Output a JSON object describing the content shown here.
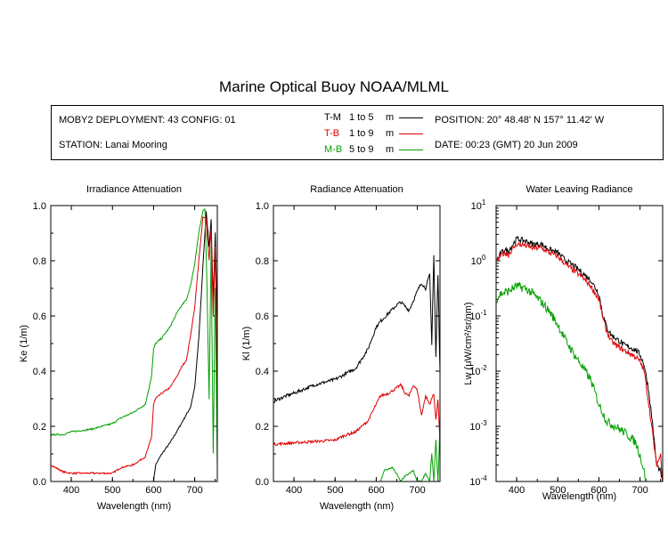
{
  "title": "Marine Optical Buoy NOAA/MLML",
  "info": {
    "deployment": "MOBY2 DEPLOYMENT: 43 CONFIG: 01",
    "station": "STATION: Lanai Mooring",
    "position": "POSITION: 20° 48.48' N   157° 11.42' W",
    "date": "DATE: 00:23 (GMT) 20 Jun 2009"
  },
  "legend": [
    {
      "code": "T-M",
      "range": "1 to 5",
      "unit": "m",
      "color": "#000000"
    },
    {
      "code": "T-B",
      "range": "1 to 9",
      "unit": "m",
      "color": "#e00000"
    },
    {
      "code": "M-B",
      "range": "5 to 9",
      "unit": "m",
      "color": "#00a000"
    }
  ],
  "chart_data": [
    {
      "type": "line",
      "title": "Irradiance Attenuation",
      "xlabel": "Wavelength (nm)",
      "ylabel": "Ke  (1/m)",
      "xlim": [
        350,
        755
      ],
      "ylim": [
        0,
        1
      ],
      "xticks": [
        "400",
        "500",
        "600",
        "700"
      ],
      "yticks": [
        "0.0",
        "0.2",
        "0.4",
        "0.6",
        "0.8",
        "1.0"
      ],
      "series": [
        {
          "name": "T-M",
          "color": "#000000",
          "noise": 0.003,
          "x": [
            600,
            605,
            620,
            640,
            660,
            675,
            690,
            700,
            710,
            720,
            728,
            735,
            740,
            745,
            750,
            755
          ],
          "y": [
            0.0,
            0.06,
            0.1,
            0.14,
            0.19,
            0.23,
            0.27,
            0.34,
            0.52,
            0.78,
            0.98,
            0.85,
            0.95,
            0.65,
            0.9,
            0.55
          ]
        },
        {
          "name": "T-B",
          "color": "#e00000",
          "noise": 0.003,
          "x": [
            350,
            380,
            400,
            450,
            500,
            520,
            550,
            580,
            595,
            600,
            605,
            620,
            640,
            660,
            670,
            680,
            690,
            700,
            710,
            720,
            728,
            735,
            740,
            745,
            750,
            755
          ],
          "y": [
            0.06,
            0.035,
            0.03,
            0.03,
            0.03,
            0.05,
            0.06,
            0.09,
            0.16,
            0.28,
            0.3,
            0.32,
            0.34,
            0.39,
            0.42,
            0.44,
            0.53,
            0.63,
            0.8,
            0.96,
            0.95,
            0.8,
            0.92,
            0.6,
            0.85,
            0.3
          ]
        },
        {
          "name": "M-B",
          "color": "#00a000",
          "noise": 0.003,
          "x": [
            350,
            380,
            400,
            450,
            500,
            520,
            550,
            580,
            595,
            600,
            605,
            620,
            640,
            660,
            670,
            680,
            690,
            700,
            710,
            720,
            725,
            730,
            735,
            740,
            745,
            750,
            755
          ],
          "y": [
            0.17,
            0.17,
            0.18,
            0.19,
            0.21,
            0.23,
            0.25,
            0.28,
            0.38,
            0.48,
            0.5,
            0.52,
            0.56,
            0.62,
            0.64,
            0.66,
            0.71,
            0.79,
            0.9,
            0.98,
            0.99,
            0.7,
            0.3,
            0.85,
            0.1,
            0.7,
            0.05
          ]
        }
      ]
    },
    {
      "type": "line",
      "title": "Radiance Attenuation",
      "xlabel": "Wavelength (nm)",
      "ylabel": "Kl  (1/m)",
      "xlim": [
        350,
        755
      ],
      "ylim": [
        0,
        1
      ],
      "xticks": [
        "400",
        "500",
        "600",
        "700"
      ],
      "yticks": [
        "0.0",
        "0.2",
        "0.4",
        "0.6",
        "0.8",
        "1.0"
      ],
      "series": [
        {
          "name": "T-M",
          "color": "#000000",
          "noise": 0.006,
          "x": [
            350,
            380,
            400,
            450,
            500,
            550,
            580,
            600,
            610,
            630,
            650,
            660,
            680,
            700,
            710,
            720,
            730,
            735,
            740,
            745,
            750,
            755
          ],
          "y": [
            0.29,
            0.31,
            0.32,
            0.35,
            0.37,
            0.41,
            0.48,
            0.56,
            0.58,
            0.61,
            0.64,
            0.65,
            0.62,
            0.69,
            0.72,
            0.7,
            0.75,
            0.5,
            0.82,
            0.45,
            0.75,
            0.4
          ]
        },
        {
          "name": "T-B",
          "color": "#e00000",
          "noise": 0.005,
          "x": [
            350,
            400,
            450,
            500,
            520,
            550,
            580,
            600,
            610,
            630,
            650,
            660,
            670,
            680,
            690,
            700,
            710,
            720,
            730,
            740,
            745,
            750,
            755
          ],
          "y": [
            0.135,
            0.14,
            0.145,
            0.15,
            0.165,
            0.18,
            0.22,
            0.28,
            0.31,
            0.32,
            0.34,
            0.35,
            0.32,
            0.31,
            0.35,
            0.33,
            0.24,
            0.31,
            0.28,
            0.32,
            0.22,
            0.3,
            0.15
          ]
        },
        {
          "name": "M-B",
          "color": "#00a000",
          "noise": 0.003,
          "x": [
            610,
            620,
            640,
            660,
            670,
            690,
            700,
            710,
            720,
            730,
            735,
            740,
            745,
            750,
            755
          ],
          "y": [
            0.0,
            0.04,
            0.05,
            0.0,
            0.02,
            0.04,
            0.0,
            0.0,
            0.03,
            0.0,
            0.1,
            0.0,
            0.15,
            0.0,
            0.2
          ]
        }
      ]
    },
    {
      "type": "line",
      "title": "Water Leaving Radiance",
      "xlabel": "Wavelength (nm)",
      "ylabel": "Lw  (μW/cm²/sr/nm)",
      "yscale": "log",
      "xlim": [
        350,
        755
      ],
      "ylim": [
        0.0001,
        10
      ],
      "xticks": [
        "400",
        "500",
        "600",
        "700"
      ],
      "yticks": [
        {
          "base": "10",
          "exp": "-4"
        },
        {
          "base": "10",
          "exp": "-3"
        },
        {
          "base": "10",
          "exp": "-2"
        },
        {
          "base": "10",
          "exp": "-1"
        },
        {
          "base": "10",
          "exp": "0"
        },
        {
          "base": "10",
          "exp": "1"
        }
      ],
      "series": [
        {
          "name": "T-M",
          "color": "#000000",
          "noise": 0.05,
          "x": [
            352,
            360,
            370,
            380,
            400,
            420,
            440,
            460,
            480,
            500,
            520,
            540,
            560,
            580,
            600,
            610,
            620,
            630,
            640,
            650,
            660,
            670,
            680,
            690,
            700,
            710,
            720,
            730,
            740,
            750,
            755
          ],
          "y": [
            1.0,
            1.3,
            1.6,
            1.5,
            2.5,
            2.3,
            2.0,
            2.0,
            1.6,
            1.4,
            1.0,
            0.8,
            0.6,
            0.45,
            0.25,
            0.1,
            0.06,
            0.045,
            0.04,
            0.035,
            0.03,
            0.028,
            0.026,
            0.024,
            0.02,
            0.013,
            0.005,
            0.0012,
            0.0002,
            0.00015,
            0.0001
          ]
        },
        {
          "name": "T-B",
          "color": "#e00000",
          "noise": 0.05,
          "x": [
            352,
            360,
            370,
            380,
            400,
            420,
            440,
            460,
            480,
            500,
            520,
            540,
            560,
            580,
            600,
            610,
            620,
            630,
            640,
            650,
            660,
            670,
            680,
            690,
            700,
            710,
            720,
            730,
            740,
            750,
            755
          ],
          "y": [
            1.0,
            1.2,
            1.4,
            1.3,
            2.0,
            1.9,
            1.7,
            1.7,
            1.4,
            1.2,
            0.85,
            0.65,
            0.5,
            0.35,
            0.2,
            0.09,
            0.05,
            0.035,
            0.03,
            0.027,
            0.024,
            0.022,
            0.02,
            0.018,
            0.015,
            0.01,
            0.003,
            0.0008,
            0.0002,
            0.0003,
            0.0001
          ]
        },
        {
          "name": "M-B",
          "color": "#00a000",
          "noise": 0.08,
          "x": [
            352,
            360,
            380,
            400,
            410,
            420,
            440,
            460,
            480,
            500,
            520,
            540,
            560,
            580,
            600,
            620,
            640,
            660,
            680,
            690,
            700,
            710,
            715,
            720
          ],
          "y": [
            0.2,
            0.25,
            0.28,
            0.35,
            0.33,
            0.32,
            0.25,
            0.18,
            0.12,
            0.07,
            0.035,
            0.02,
            0.012,
            0.007,
            0.0025,
            0.0012,
            0.001,
            0.0008,
            0.0006,
            0.0005,
            0.0003,
            0.00015,
            0.0001,
            5e-05
          ]
        }
      ]
    }
  ]
}
